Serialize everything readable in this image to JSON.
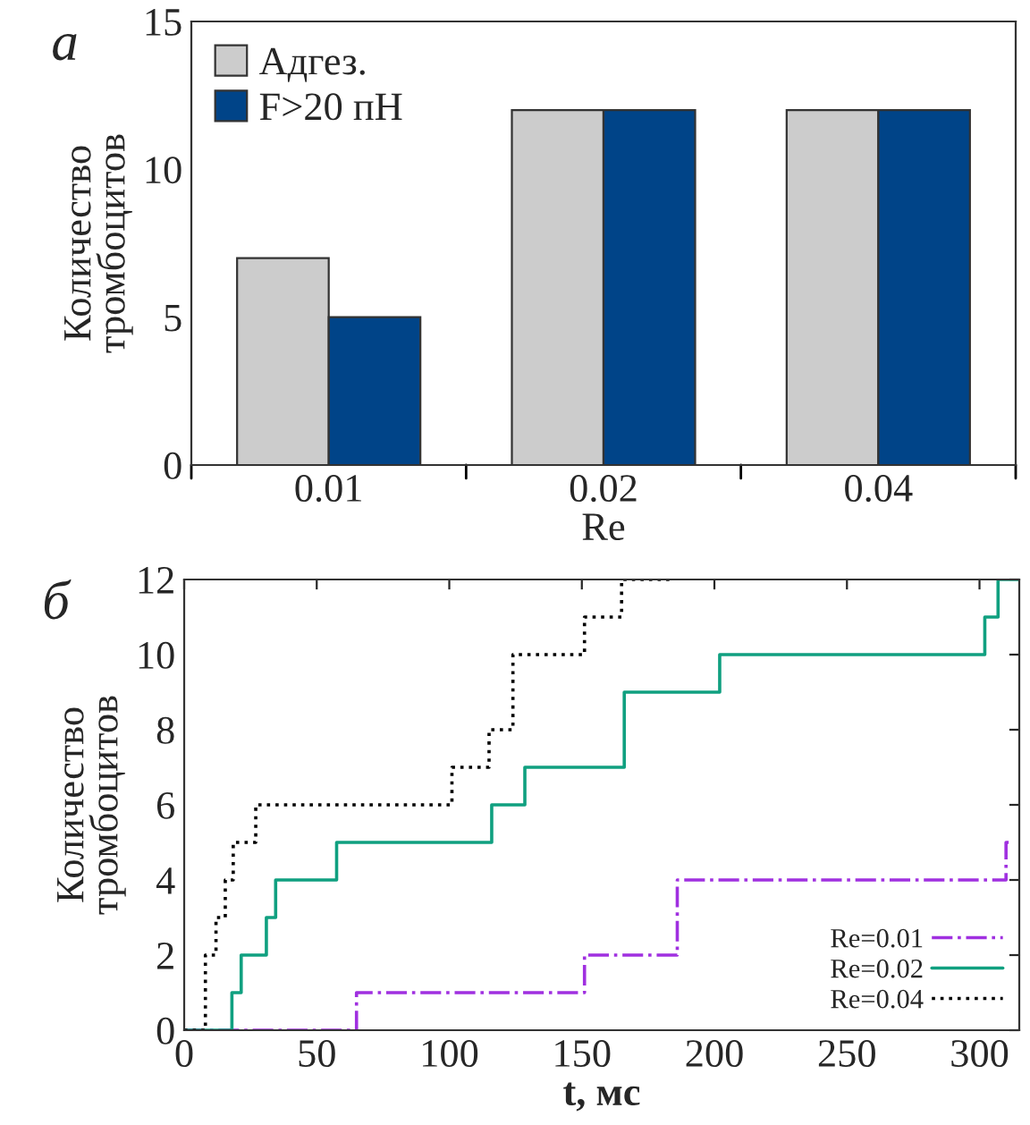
{
  "chart_data": [
    {
      "type": "bar",
      "title": "а",
      "categories": [
        "0.01",
        "0.02",
        "0.04"
      ],
      "xlabel": "Re",
      "ylabel": "Количество\nтромбоцитов",
      "ylim": [
        0,
        15
      ],
      "yticks": [
        0,
        5,
        10,
        15
      ],
      "legend": "top left",
      "series": [
        {
          "name": "Адгез.",
          "color": "#cccccc",
          "values": [
            7,
            12,
            12
          ]
        },
        {
          "name": "F>20 пН",
          "color": "#004488",
          "values": [
            5,
            12,
            12
          ]
        }
      ]
    },
    {
      "type": "step",
      "title": "б",
      "xlabel": "t, мс",
      "ylabel": "Количество\nтромбоцитов",
      "xlim": [
        0,
        315
      ],
      "xticks": [
        0,
        50,
        100,
        150,
        200,
        250,
        300
      ],
      "ylim": [
        0,
        12
      ],
      "yticks": [
        0,
        2,
        4,
        6,
        8,
        10,
        12
      ],
      "legend": "bottom right",
      "series": [
        {
          "name": "Re=0.01",
          "color": "#a030e0",
          "line_style": "dashdot",
          "x": [
            0,
            65,
            151,
            186,
            310,
            311
          ],
          "values": [
            0,
            1,
            2,
            4,
            5,
            5
          ]
        },
        {
          "name": "Re=0.02",
          "color": "#10a080",
          "line_style": "solid",
          "x": [
            0,
            18,
            21.5,
            31,
            34.5,
            57.5,
            116,
            128.5,
            166,
            202,
            302,
            307,
            315
          ],
          "values": [
            0,
            1,
            2,
            3,
            4,
            5,
            6,
            7,
            9,
            10,
            11,
            12,
            12
          ]
        },
        {
          "name": "Re=0.04",
          "color": "#000000",
          "line_style": "dotted",
          "x": [
            0,
            8,
            12,
            15.5,
            18.5,
            27,
            101,
            115,
            124,
            151,
            165,
            185
          ],
          "values": [
            0,
            2,
            3,
            4,
            5,
            6,
            7,
            8,
            10,
            11,
            12,
            12
          ]
        }
      ]
    }
  ]
}
